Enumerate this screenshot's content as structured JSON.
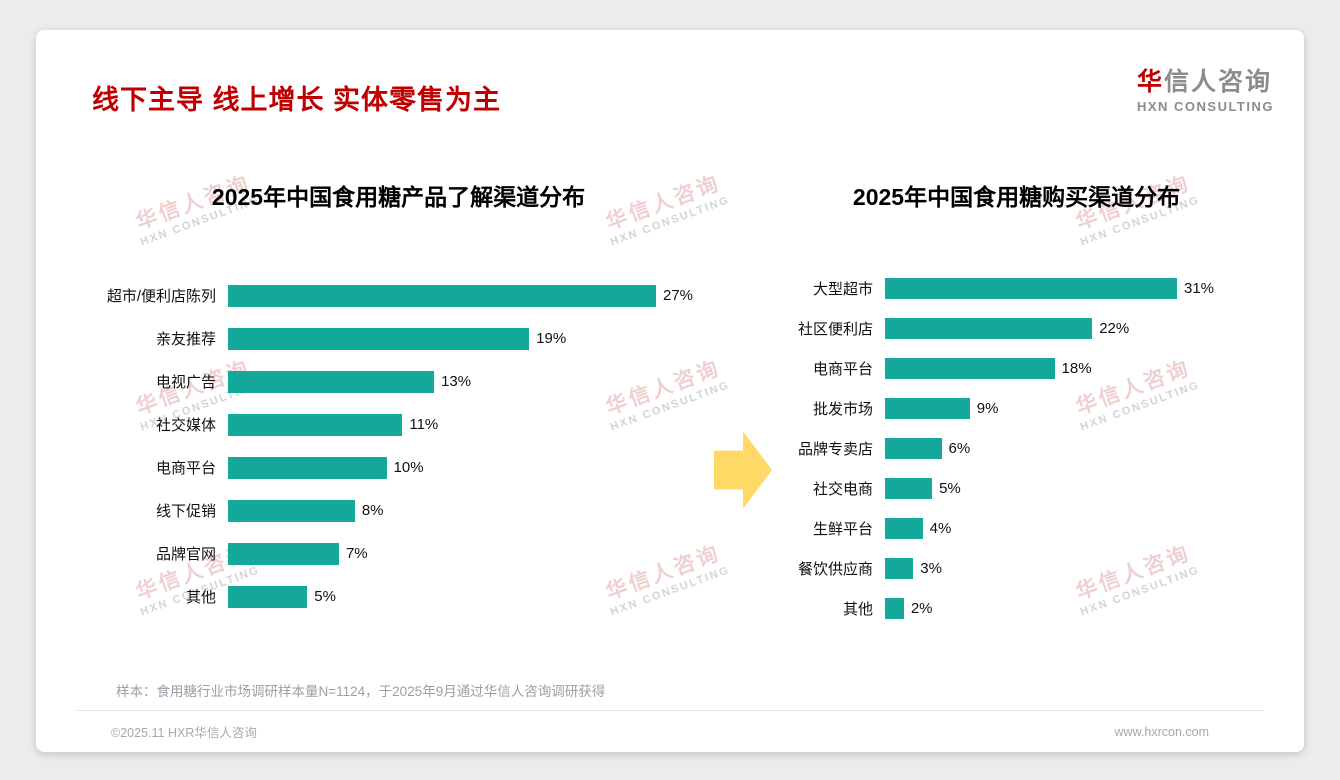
{
  "page": {
    "title": "线下主导 线上增长 实体零售为主",
    "footnote": "样本：食用糖行业市场调研样本量N=1124，于2025年9月通过华信人咨询调研获得",
    "footer_left": "©2025.11 HXR华信人咨询",
    "footer_right": "www.hxrcon.com"
  },
  "logo": {
    "accent_char": "华",
    "rest_cn": "信人咨询",
    "en": "HXN CONSULTING"
  },
  "watermark": {
    "line_cn": "华信人咨询",
    "line_en": "HXN CONSULTING"
  },
  "colors": {
    "bar_teal": "#14A89B",
    "title_red": "#C00000",
    "arrow_yellow": "#FFD966"
  },
  "chart_data": [
    {
      "type": "bar",
      "orientation": "horizontal",
      "title": "2025年中国食用糖产品了解渠道分布",
      "categories": [
        "超市/便利店陈列",
        "亲友推荐",
        "电视广告",
        "社交媒体",
        "电商平台",
        "线下促销",
        "品牌官网",
        "其他"
      ],
      "values": [
        27,
        19,
        13,
        11,
        10,
        8,
        7,
        5
      ],
      "unit": "%",
      "value_axis_range": [
        0,
        31
      ],
      "grid": false,
      "legend": false,
      "bar_color": "#14A89B"
    },
    {
      "type": "bar",
      "orientation": "horizontal",
      "title": "2025年中国食用糖购买渠道分布",
      "categories": [
        "大型超市",
        "社区便利店",
        "电商平台",
        "批发市场",
        "品牌专卖店",
        "社交电商",
        "生鲜平台",
        "餐饮供应商",
        "其他"
      ],
      "values": [
        31,
        22,
        18,
        9,
        6,
        5,
        4,
        3,
        2
      ],
      "unit": "%",
      "value_axis_range": [
        0,
        35
      ],
      "grid": false,
      "legend": false,
      "bar_color": "#14A89B"
    }
  ]
}
